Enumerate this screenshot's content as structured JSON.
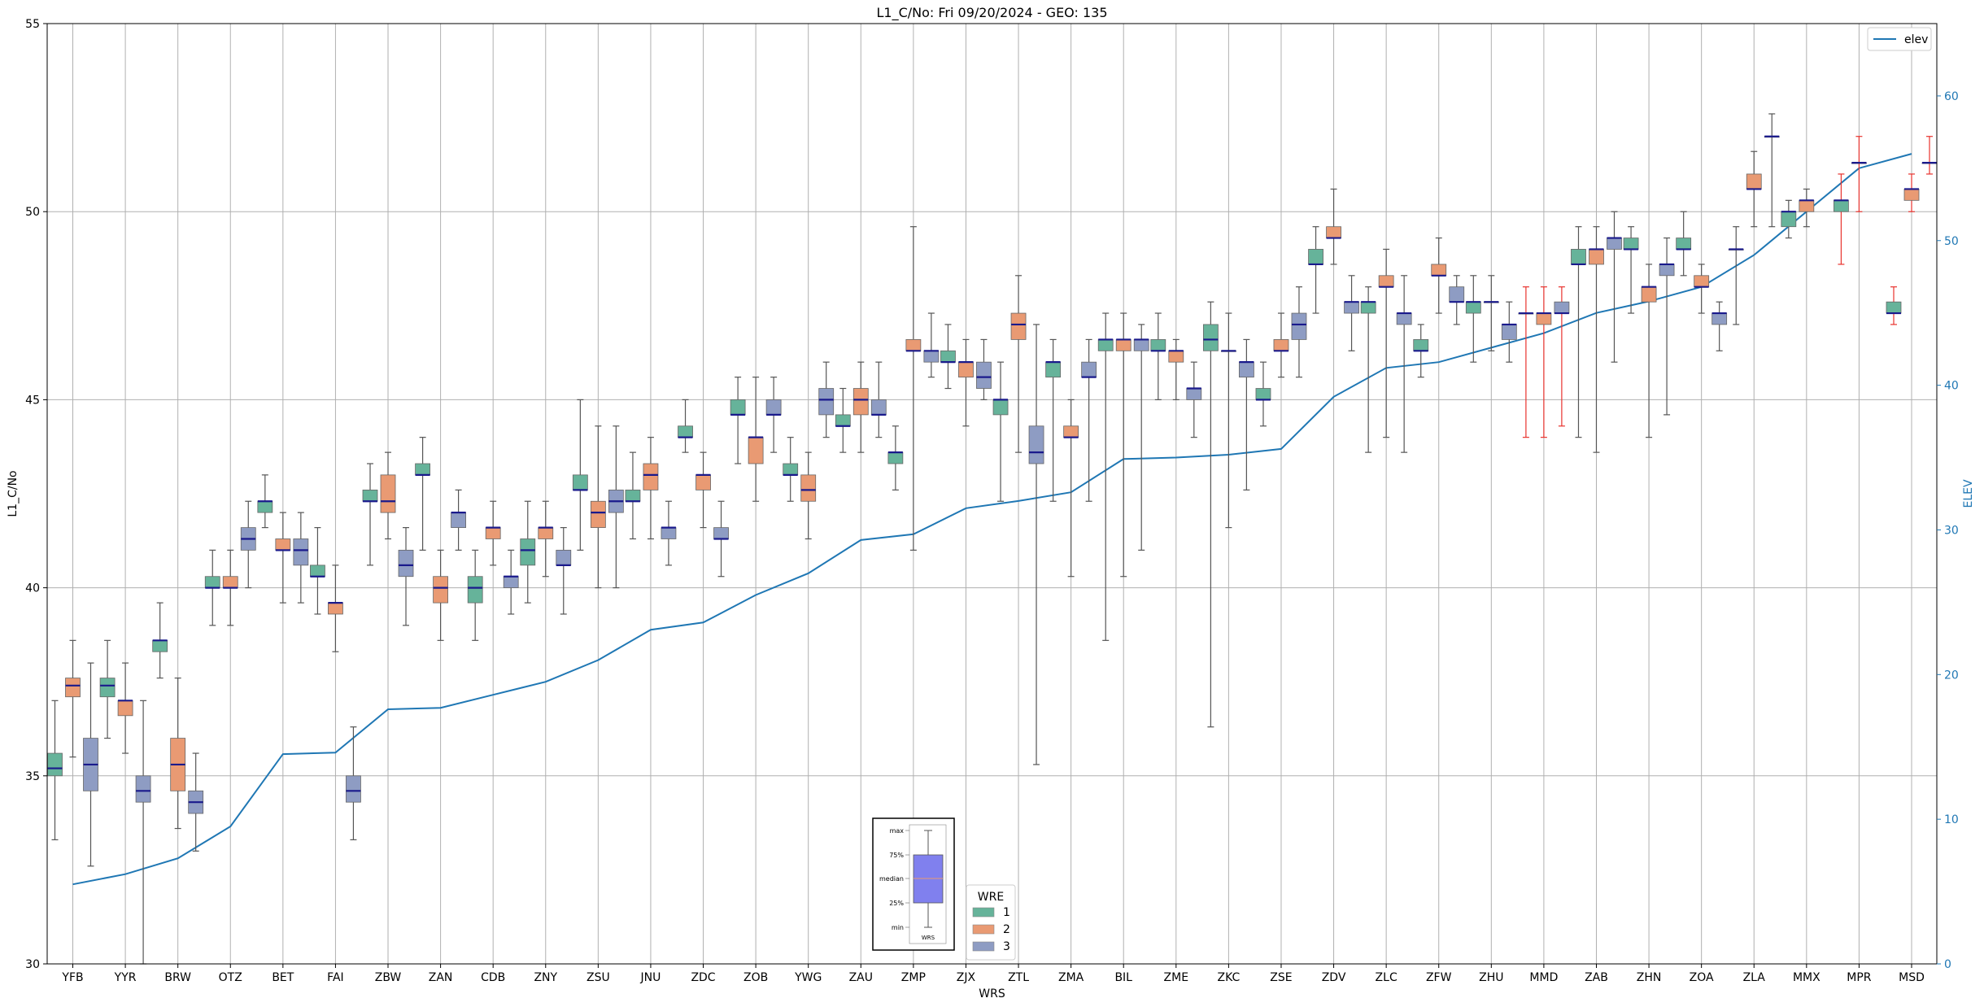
{
  "chart_data": {
    "type": "box",
    "title": "L1_C/No: Fri 09/20/2024 - GEO: 135",
    "xlabel": "WRS",
    "ylabel": "L1_C/No",
    "y2label": "ELEV",
    "ylim": [
      30,
      55
    ],
    "y2lim": [
      0,
      65
    ],
    "yticks": [
      30,
      35,
      40,
      45,
      50,
      55
    ],
    "y2ticks": [
      0,
      10,
      20,
      30,
      40,
      50,
      60
    ],
    "grid": true,
    "legend_line": {
      "label": "elev",
      "color": "#1f77b4",
      "position": "top-right"
    },
    "legend_groups": {
      "title": "WRE",
      "position": "bottom-center",
      "entries": [
        {
          "label": "1",
          "color": "#66b39a"
        },
        {
          "label": "2",
          "color": "#e99a73"
        },
        {
          "label": "3",
          "color": "#8e9cc3"
        }
      ]
    },
    "inset_key": {
      "labels": [
        "max",
        "75%",
        "median",
        "25%",
        "min"
      ],
      "xlabel": "WRS",
      "fill": "#8080ee"
    },
    "categories": [
      "YFB",
      "YYR",
      "BRW",
      "OTZ",
      "BET",
      "FAI",
      "ZBW",
      "ZAN",
      "CDB",
      "ZNY",
      "ZSU",
      "JNU",
      "ZDC",
      "ZOB",
      "YWG",
      "ZAU",
      "ZMP",
      "ZJX",
      "ZTL",
      "ZMA",
      "BIL",
      "ZME",
      "ZKC",
      "ZSE",
      "ZDV",
      "ZLC",
      "ZFW",
      "ZHU",
      "MMD",
      "ZAB",
      "ZHN",
      "ZOA",
      "ZLA",
      "MMX",
      "MPR",
      "MSD"
    ],
    "elev": [
      5.5,
      6.2,
      7.3,
      9.5,
      14.5,
      14.6,
      17.6,
      17.7,
      18.6,
      19.5,
      21.0,
      23.1,
      23.6,
      25.5,
      27.0,
      29.3,
      29.7,
      31.5,
      32.0,
      32.6,
      34.9,
      35.0,
      35.2,
      35.6,
      39.2,
      41.2,
      41.6,
      42.6,
      43.6,
      45.0,
      45.8,
      46.8,
      49.0,
      52.0,
      55.0,
      56.0
    ],
    "boxes": [
      {
        "cat": "YFB",
        "wre": "1",
        "min": 33.3,
        "q1": 35.0,
        "med": 35.2,
        "q3": 35.6,
        "max": 37.0
      },
      {
        "cat": "YFB",
        "wre": "2",
        "min": 35.5,
        "q1": 37.1,
        "med": 37.4,
        "q3": 37.6,
        "max": 38.6
      },
      {
        "cat": "YFB",
        "wre": "3",
        "min": 32.6,
        "q1": 34.6,
        "med": 35.3,
        "q3": 36.0,
        "max": 38.0
      },
      {
        "cat": "YYR",
        "wre": "1",
        "min": 36.0,
        "q1": 37.1,
        "med": 37.4,
        "q3": 37.6,
        "max": 38.6
      },
      {
        "cat": "YYR",
        "wre": "2",
        "min": 35.6,
        "q1": 36.6,
        "med": 37.0,
        "q3": 37.0,
        "max": 38.0
      },
      {
        "cat": "YYR",
        "wre": "3",
        "min": 30.0,
        "q1": 34.3,
        "med": 34.6,
        "q3": 35.0,
        "max": 37.0
      },
      {
        "cat": "BRW",
        "wre": "1",
        "min": 37.6,
        "q1": 38.3,
        "med": 38.6,
        "q3": 38.6,
        "max": 39.6
      },
      {
        "cat": "BRW",
        "wre": "2",
        "min": 33.6,
        "q1": 34.6,
        "med": 35.3,
        "q3": 36.0,
        "max": 37.6
      },
      {
        "cat": "BRW",
        "wre": "3",
        "min": 33.0,
        "q1": 34.0,
        "med": 34.3,
        "q3": 34.6,
        "max": 35.6
      },
      {
        "cat": "OTZ",
        "wre": "1",
        "min": 39.0,
        "q1": 40.0,
        "med": 40.0,
        "q3": 40.3,
        "max": 41.0
      },
      {
        "cat": "OTZ",
        "wre": "2",
        "min": 39.0,
        "q1": 40.0,
        "med": 40.0,
        "q3": 40.3,
        "max": 41.0
      },
      {
        "cat": "OTZ",
        "wre": "3",
        "min": 40.0,
        "q1": 41.0,
        "med": 41.3,
        "q3": 41.6,
        "max": 42.3
      },
      {
        "cat": "BET",
        "wre": "1",
        "min": 41.6,
        "q1": 42.0,
        "med": 42.3,
        "q3": 42.3,
        "max": 43.0
      },
      {
        "cat": "BET",
        "wre": "2",
        "min": 39.6,
        "q1": 41.0,
        "med": 41.0,
        "q3": 41.3,
        "max": 42.0
      },
      {
        "cat": "BET",
        "wre": "3",
        "min": 39.6,
        "q1": 40.6,
        "med": 41.0,
        "q3": 41.3,
        "max": 42.0
      },
      {
        "cat": "FAI",
        "wre": "1",
        "min": 39.3,
        "q1": 40.3,
        "med": 40.3,
        "q3": 40.6,
        "max": 41.6
      },
      {
        "cat": "FAI",
        "wre": "2",
        "min": 38.3,
        "q1": 39.3,
        "med": 39.6,
        "q3": 39.6,
        "max": 40.6
      },
      {
        "cat": "FAI",
        "wre": "3",
        "min": 33.3,
        "q1": 34.3,
        "med": 34.6,
        "q3": 35.0,
        "max": 36.3
      },
      {
        "cat": "ZBW",
        "wre": "1",
        "min": 40.6,
        "q1": 42.3,
        "med": 42.3,
        "q3": 42.6,
        "max": 43.3
      },
      {
        "cat": "ZBW",
        "wre": "2",
        "min": 41.3,
        "q1": 42.0,
        "med": 42.3,
        "q3": 43.0,
        "max": 43.6
      },
      {
        "cat": "ZBW",
        "wre": "3",
        "min": 39.0,
        "q1": 40.3,
        "med": 40.6,
        "q3": 41.0,
        "max": 41.6
      },
      {
        "cat": "ZAN",
        "wre": "1",
        "min": 41.0,
        "q1": 43.0,
        "med": 43.0,
        "q3": 43.3,
        "max": 44.0
      },
      {
        "cat": "ZAN",
        "wre": "2",
        "min": 38.6,
        "q1": 39.6,
        "med": 40.0,
        "q3": 40.3,
        "max": 41.0
      },
      {
        "cat": "ZAN",
        "wre": "3",
        "min": 41.0,
        "q1": 41.6,
        "med": 42.0,
        "q3": 42.0,
        "max": 42.6
      },
      {
        "cat": "CDB",
        "wre": "1",
        "min": 38.6,
        "q1": 39.6,
        "med": 40.0,
        "q3": 40.3,
        "max": 41.0
      },
      {
        "cat": "CDB",
        "wre": "2",
        "min": 40.6,
        "q1": 41.3,
        "med": 41.6,
        "q3": 41.6,
        "max": 42.3
      },
      {
        "cat": "CDB",
        "wre": "3",
        "min": 39.3,
        "q1": 40.0,
        "med": 40.3,
        "q3": 40.3,
        "max": 41.0
      },
      {
        "cat": "ZNY",
        "wre": "1",
        "min": 39.6,
        "q1": 40.6,
        "med": 41.0,
        "q3": 41.3,
        "max": 42.3
      },
      {
        "cat": "ZNY",
        "wre": "2",
        "min": 40.3,
        "q1": 41.3,
        "med": 41.6,
        "q3": 41.6,
        "max": 42.3
      },
      {
        "cat": "ZNY",
        "wre": "3",
        "min": 39.3,
        "q1": 40.6,
        "med": 40.6,
        "q3": 41.0,
        "max": 41.6
      },
      {
        "cat": "ZSU",
        "wre": "1",
        "min": 41.0,
        "q1": 42.6,
        "med": 42.6,
        "q3": 43.0,
        "max": 45.0
      },
      {
        "cat": "ZSU",
        "wre": "2",
        "min": 40.0,
        "q1": 41.6,
        "med": 42.0,
        "q3": 42.3,
        "max": 44.3
      },
      {
        "cat": "ZSU",
        "wre": "3",
        "min": 40.0,
        "q1": 42.0,
        "med": 42.3,
        "q3": 42.6,
        "max": 44.3
      },
      {
        "cat": "JNU",
        "wre": "1",
        "min": 41.3,
        "q1": 42.3,
        "med": 42.3,
        "q3": 42.6,
        "max": 43.6
      },
      {
        "cat": "JNU",
        "wre": "2",
        "min": 41.3,
        "q1": 42.6,
        "med": 43.0,
        "q3": 43.3,
        "max": 44.0
      },
      {
        "cat": "JNU",
        "wre": "3",
        "min": 40.6,
        "q1": 41.3,
        "med": 41.6,
        "q3": 41.6,
        "max": 42.3
      },
      {
        "cat": "ZDC",
        "wre": "1",
        "min": 43.6,
        "q1": 44.0,
        "med": 44.0,
        "q3": 44.3,
        "max": 45.0
      },
      {
        "cat": "ZDC",
        "wre": "2",
        "min": 41.6,
        "q1": 42.6,
        "med": 43.0,
        "q3": 43.0,
        "max": 43.6
      },
      {
        "cat": "ZDC",
        "wre": "3",
        "min": 40.3,
        "q1": 41.3,
        "med": 41.3,
        "q3": 41.6,
        "max": 42.3
      },
      {
        "cat": "ZOB",
        "wre": "1",
        "min": 43.3,
        "q1": 44.6,
        "med": 44.6,
        "q3": 45.0,
        "max": 45.6
      },
      {
        "cat": "ZOB",
        "wre": "2",
        "min": 42.3,
        "q1": 43.3,
        "med": 44.0,
        "q3": 44.0,
        "max": 45.6
      },
      {
        "cat": "ZOB",
        "wre": "3",
        "min": 43.6,
        "q1": 44.6,
        "med": 44.6,
        "q3": 45.0,
        "max": 45.6
      },
      {
        "cat": "YWG",
        "wre": "1",
        "min": 42.3,
        "q1": 43.0,
        "med": 43.0,
        "q3": 43.3,
        "max": 44.0
      },
      {
        "cat": "YWG",
        "wre": "2",
        "min": 41.3,
        "q1": 42.3,
        "med": 42.6,
        "q3": 43.0,
        "max": 43.6
      },
      {
        "cat": "YWG",
        "wre": "3",
        "min": 44.0,
        "q1": 44.6,
        "med": 45.0,
        "q3": 45.3,
        "max": 46.0
      },
      {
        "cat": "ZAU",
        "wre": "1",
        "min": 43.6,
        "q1": 44.3,
        "med": 44.3,
        "q3": 44.6,
        "max": 45.3
      },
      {
        "cat": "ZAU",
        "wre": "2",
        "min": 43.6,
        "q1": 44.6,
        "med": 45.0,
        "q3": 45.3,
        "max": 46.0
      },
      {
        "cat": "ZAU",
        "wre": "3",
        "min": 44.0,
        "q1": 44.6,
        "med": 44.6,
        "q3": 45.0,
        "max": 46.0
      },
      {
        "cat": "ZMP",
        "wre": "1",
        "min": 42.6,
        "q1": 43.3,
        "med": 43.6,
        "q3": 43.6,
        "max": 44.3
      },
      {
        "cat": "ZMP",
        "wre": "2",
        "min": 41.0,
        "q1": 46.3,
        "med": 46.3,
        "q3": 46.6,
        "max": 49.6
      },
      {
        "cat": "ZMP",
        "wre": "3",
        "min": 45.6,
        "q1": 46.0,
        "med": 46.3,
        "q3": 46.3,
        "max": 47.3
      },
      {
        "cat": "ZJX",
        "wre": "1",
        "min": 45.3,
        "q1": 46.0,
        "med": 46.0,
        "q3": 46.3,
        "max": 47.0
      },
      {
        "cat": "ZJX",
        "wre": "2",
        "min": 44.3,
        "q1": 45.6,
        "med": 46.0,
        "q3": 46.0,
        "max": 46.6
      },
      {
        "cat": "ZJX",
        "wre": "3",
        "min": 45.0,
        "q1": 45.3,
        "med": 45.6,
        "q3": 46.0,
        "max": 46.6
      },
      {
        "cat": "ZTL",
        "wre": "1",
        "min": 42.3,
        "q1": 44.6,
        "med": 45.0,
        "q3": 45.0,
        "max": 46.0
      },
      {
        "cat": "ZTL",
        "wre": "2",
        "min": 43.6,
        "q1": 46.6,
        "med": 47.0,
        "q3": 47.3,
        "max": 48.3
      },
      {
        "cat": "ZTL",
        "wre": "3",
        "min": 35.3,
        "q1": 43.3,
        "med": 43.6,
        "q3": 44.3,
        "max": 47.0
      },
      {
        "cat": "ZMA",
        "wre": "1",
        "min": 42.3,
        "q1": 45.6,
        "med": 46.0,
        "q3": 46.0,
        "max": 46.6
      },
      {
        "cat": "ZMA",
        "wre": "2",
        "min": 40.3,
        "q1": 44.0,
        "med": 44.0,
        "q3": 44.3,
        "max": 45.0
      },
      {
        "cat": "ZMA",
        "wre": "3",
        "min": 42.3,
        "q1": 45.6,
        "med": 45.6,
        "q3": 46.0,
        "max": 46.6
      },
      {
        "cat": "BIL",
        "wre": "1",
        "min": 38.6,
        "q1": 46.3,
        "med": 46.6,
        "q3": 46.6,
        "max": 47.3
      },
      {
        "cat": "BIL",
        "wre": "2",
        "min": 40.3,
        "q1": 46.3,
        "med": 46.6,
        "q3": 46.6,
        "max": 47.3
      },
      {
        "cat": "BIL",
        "wre": "3",
        "min": 41.0,
        "q1": 46.3,
        "med": 46.6,
        "q3": 46.6,
        "max": 47.0
      },
      {
        "cat": "ZME",
        "wre": "1",
        "min": 45.0,
        "q1": 46.3,
        "med": 46.3,
        "q3": 46.6,
        "max": 47.3
      },
      {
        "cat": "ZME",
        "wre": "2",
        "min": 45.0,
        "q1": 46.0,
        "med": 46.3,
        "q3": 46.3,
        "max": 46.6
      },
      {
        "cat": "ZME",
        "wre": "3",
        "min": 44.0,
        "q1": 45.0,
        "med": 45.3,
        "q3": 45.3,
        "max": 46.0
      },
      {
        "cat": "ZKC",
        "wre": "1",
        "min": 36.3,
        "q1": 46.3,
        "med": 46.6,
        "q3": 47.0,
        "max": 47.6
      },
      {
        "cat": "ZKC",
        "wre": "2",
        "min": 41.6,
        "q1": 46.3,
        "med": 46.3,
        "q3": 46.3,
        "max": 47.3
      },
      {
        "cat": "ZKC",
        "wre": "3",
        "min": 42.6,
        "q1": 45.6,
        "med": 46.0,
        "q3": 46.0,
        "max": 46.6
      },
      {
        "cat": "ZSE",
        "wre": "1",
        "min": 44.3,
        "q1": 45.0,
        "med": 45.0,
        "q3": 45.3,
        "max": 46.0
      },
      {
        "cat": "ZSE",
        "wre": "2",
        "min": 45.6,
        "q1": 46.3,
        "med": 46.3,
        "q3": 46.6,
        "max": 47.3
      },
      {
        "cat": "ZSE",
        "wre": "3",
        "min": 45.6,
        "q1": 46.6,
        "med": 47.0,
        "q3": 47.3,
        "max": 48.0
      },
      {
        "cat": "ZDV",
        "wre": "1",
        "min": 47.3,
        "q1": 48.6,
        "med": 48.6,
        "q3": 49.0,
        "max": 49.6
      },
      {
        "cat": "ZDV",
        "wre": "2",
        "min": 48.6,
        "q1": 49.3,
        "med": 49.3,
        "q3": 49.6,
        "max": 50.6
      },
      {
        "cat": "ZDV",
        "wre": "3",
        "min": 46.3,
        "q1": 47.3,
        "med": 47.6,
        "q3": 47.6,
        "max": 48.3
      },
      {
        "cat": "ZLC",
        "wre": "1",
        "min": 43.6,
        "q1": 47.3,
        "med": 47.6,
        "q3": 47.6,
        "max": 48.0
      },
      {
        "cat": "ZLC",
        "wre": "2",
        "min": 44.0,
        "q1": 48.0,
        "med": 48.0,
        "q3": 48.3,
        "max": 49.0
      },
      {
        "cat": "ZLC",
        "wre": "3",
        "min": 43.6,
        "q1": 47.0,
        "med": 47.3,
        "q3": 47.3,
        "max": 48.3
      },
      {
        "cat": "ZFW",
        "wre": "1",
        "min": 45.6,
        "q1": 46.3,
        "med": 46.3,
        "q3": 46.6,
        "max": 47.0
      },
      {
        "cat": "ZFW",
        "wre": "2",
        "min": 47.3,
        "q1": 48.3,
        "med": 48.3,
        "q3": 48.6,
        "max": 49.3
      },
      {
        "cat": "ZFW",
        "wre": "3",
        "min": 47.0,
        "q1": 47.6,
        "med": 47.6,
        "q3": 48.0,
        "max": 48.3
      },
      {
        "cat": "ZHU",
        "wre": "1",
        "min": 46.0,
        "q1": 47.3,
        "med": 47.6,
        "q3": 47.6,
        "max": 48.3
      },
      {
        "cat": "ZHU",
        "wre": "2",
        "min": 46.3,
        "q1": 47.6,
        "med": 47.6,
        "q3": 47.6,
        "max": 48.3
      },
      {
        "cat": "ZHU",
        "wre": "3",
        "min": 46.0,
        "q1": 46.6,
        "med": 47.0,
        "q3": 47.0,
        "max": 47.6
      },
      {
        "cat": "MMD",
        "wre": "1",
        "min": 44.0,
        "q1": 47.3,
        "med": 47.3,
        "q3": 47.3,
        "max": 48.0,
        "red": true
      },
      {
        "cat": "MMD",
        "wre": "2",
        "min": 44.0,
        "q1": 47.0,
        "med": 47.3,
        "q3": 47.3,
        "max": 48.0,
        "red": true
      },
      {
        "cat": "MMD",
        "wre": "3",
        "min": 44.3,
        "q1": 47.3,
        "med": 47.3,
        "q3": 47.6,
        "max": 48.0,
        "red": true
      },
      {
        "cat": "ZAB",
        "wre": "1",
        "min": 44.0,
        "q1": 48.6,
        "med": 48.6,
        "q3": 49.0,
        "max": 49.6
      },
      {
        "cat": "ZAB",
        "wre": "2",
        "min": 43.6,
        "q1": 48.6,
        "med": 49.0,
        "q3": 49.0,
        "max": 49.6
      },
      {
        "cat": "ZAB",
        "wre": "3",
        "min": 46.0,
        "q1": 49.0,
        "med": 49.3,
        "q3": 49.3,
        "max": 50.0
      },
      {
        "cat": "ZHN",
        "wre": "1",
        "min": 47.3,
        "q1": 49.0,
        "med": 49.0,
        "q3": 49.3,
        "max": 49.6
      },
      {
        "cat": "ZHN",
        "wre": "2",
        "min": 44.0,
        "q1": 47.6,
        "med": 48.0,
        "q3": 48.0,
        "max": 48.6
      },
      {
        "cat": "ZHN",
        "wre": "3",
        "min": 44.6,
        "q1": 48.3,
        "med": 48.6,
        "q3": 48.6,
        "max": 49.3
      },
      {
        "cat": "ZOA",
        "wre": "1",
        "min": 48.3,
        "q1": 49.0,
        "med": 49.0,
        "q3": 49.3,
        "max": 50.0
      },
      {
        "cat": "ZOA",
        "wre": "2",
        "min": 47.3,
        "q1": 48.0,
        "med": 48.0,
        "q3": 48.3,
        "max": 48.6
      },
      {
        "cat": "ZOA",
        "wre": "3",
        "min": 46.3,
        "q1": 47.0,
        "med": 47.3,
        "q3": 47.3,
        "max": 47.6
      },
      {
        "cat": "ZLA",
        "wre": "1",
        "min": 47.0,
        "q1": 49.0,
        "med": 49.0,
        "q3": 49.0,
        "max": 49.6
      },
      {
        "cat": "ZLA",
        "wre": "2",
        "min": 49.6,
        "q1": 50.6,
        "med": 50.6,
        "q3": 51.0,
        "max": 51.6
      },
      {
        "cat": "ZLA",
        "wre": "3",
        "min": 49.6,
        "q1": 52.0,
        "med": 52.0,
        "q3": 52.0,
        "max": 52.6
      },
      {
        "cat": "MMX",
        "wre": "1",
        "min": 49.3,
        "q1": 49.6,
        "med": 50.0,
        "q3": 50.0,
        "max": 50.3
      },
      {
        "cat": "MMX",
        "wre": "2",
        "min": 49.6,
        "q1": 50.0,
        "med": 50.3,
        "q3": 50.3,
        "max": 50.6
      },
      {
        "cat": "MPR",
        "wre": "1",
        "min": 48.6,
        "q1": 50.0,
        "med": 50.3,
        "q3": 50.3,
        "max": 51.0,
        "red": true
      },
      {
        "cat": "MPR",
        "wre": "2",
        "min": 50.0,
        "q1": 51.3,
        "med": 51.3,
        "q3": 51.3,
        "max": 52.0,
        "red": true
      },
      {
        "cat": "MSD",
        "wre": "1",
        "min": 47.0,
        "q1": 47.3,
        "med": 47.3,
        "q3": 47.6,
        "max": 48.0,
        "red": true
      },
      {
        "cat": "MSD",
        "wre": "2",
        "min": 50.0,
        "q1": 50.3,
        "med": 50.6,
        "q3": 50.6,
        "max": 51.0,
        "red": true
      },
      {
        "cat": "MSD",
        "wre": "3",
        "min": 51.0,
        "q1": 51.3,
        "med": 51.3,
        "q3": 51.3,
        "max": 52.0,
        "red": true
      }
    ]
  }
}
